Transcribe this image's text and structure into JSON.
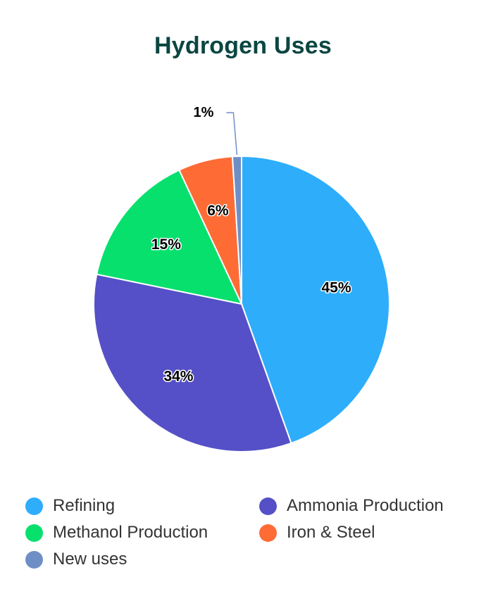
{
  "chart_data": {
    "type": "pie",
    "title": "Hydrogen Uses",
    "categories": [
      "Refining",
      "Ammonia Production",
      "Methanol Production",
      "Iron & Steel",
      "New uses"
    ],
    "values": [
      45,
      34,
      15,
      6,
      1
    ],
    "labels": [
      "45%",
      "34%",
      "15%",
      "6%",
      "1%"
    ],
    "colors": [
      "#2eadfb",
      "#5550c7",
      "#08e06e",
      "#fe6b35",
      "#6e8fc6"
    ],
    "legend": "bottom"
  }
}
